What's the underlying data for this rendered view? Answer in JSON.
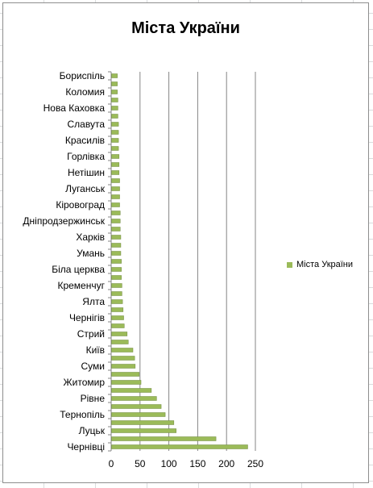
{
  "chart_data": {
    "type": "bar",
    "orientation": "horizontal",
    "title": "Міста України",
    "categories": [
      "Бориспіль",
      "",
      "Коломия",
      "",
      "Нова Каховка",
      "",
      "Славута",
      "",
      "Красилів",
      "",
      "Горлівка",
      "",
      "Нетішин",
      "",
      "Луганськ",
      "",
      "Кіровоград",
      "",
      "Дніпродзержинськ",
      "",
      "Харків",
      "",
      "Умань",
      "",
      "Біла церква",
      "",
      "Кременчуг",
      "",
      "Ялта",
      "",
      "Чернігів",
      "",
      "Стрий",
      "",
      "Київ",
      "",
      "Суми",
      "",
      "Житомир",
      "",
      "Рівне",
      "",
      "Тернопіль",
      "",
      "Луцьк",
      "",
      "Чернівці"
    ],
    "series": [
      {
        "name": "Міста України",
        "values": [
          10,
          10,
          10,
          11,
          11,
          11,
          12,
          12,
          12,
          12,
          13,
          13,
          13,
          14,
          14,
          14,
          14,
          15,
          15,
          15,
          16,
          16,
          16,
          17,
          17,
          17,
          18,
          18,
          19,
          20,
          21,
          22,
          27,
          29,
          37,
          40,
          41,
          48,
          51,
          69,
          78,
          86,
          93,
          108,
          112,
          181,
          236
        ]
      }
    ],
    "xlim": [
      0,
      250
    ],
    "xticks": [
      0,
      50,
      100,
      150,
      200,
      250
    ],
    "grid": true,
    "legend_position": "right",
    "colors": {
      "bar": "#9bbb59",
      "bar_edge": "#71893f",
      "gridline": "#868686",
      "axis": "#868686"
    }
  }
}
